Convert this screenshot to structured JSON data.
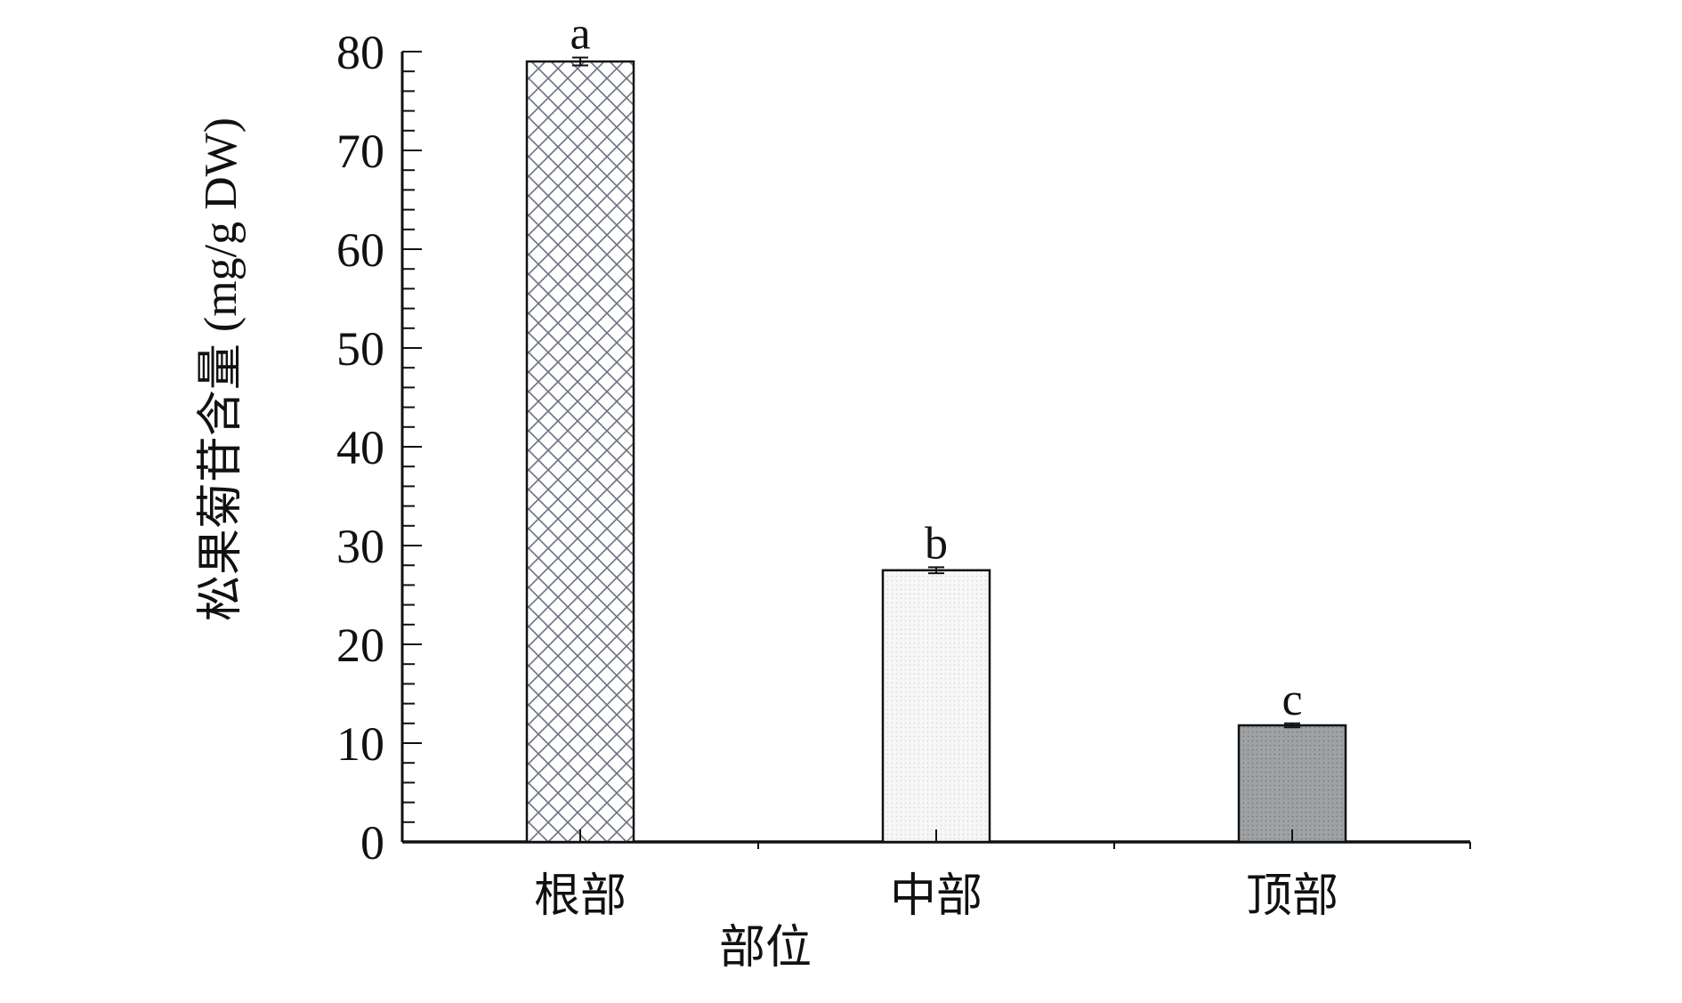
{
  "chart_data": {
    "type": "bar",
    "categories": [
      "根部",
      "中部",
      "顶部"
    ],
    "values": [
      79,
      27.5,
      11.8
    ],
    "errors": [
      0.4,
      0.3,
      0.2
    ],
    "significance_labels": [
      "a",
      "b",
      "c"
    ],
    "bar_fills": [
      "crosshatch",
      "light-dotted",
      "dark-dotted"
    ],
    "xlabel": "部位",
    "ylabel": "松果菊苷含量 (mg/g DW)",
    "ylim": [
      0,
      80
    ],
    "yticks": [
      "0",
      "10",
      "20",
      "30",
      "40",
      "50",
      "60",
      "70",
      "80"
    ],
    "grid": false,
    "legend": "none"
  },
  "colors": {
    "axis": "#111111",
    "crosshatch_line": "#6b7280",
    "light_fill": "#f7f7f7",
    "dark_fill": "#9ea2a5"
  }
}
